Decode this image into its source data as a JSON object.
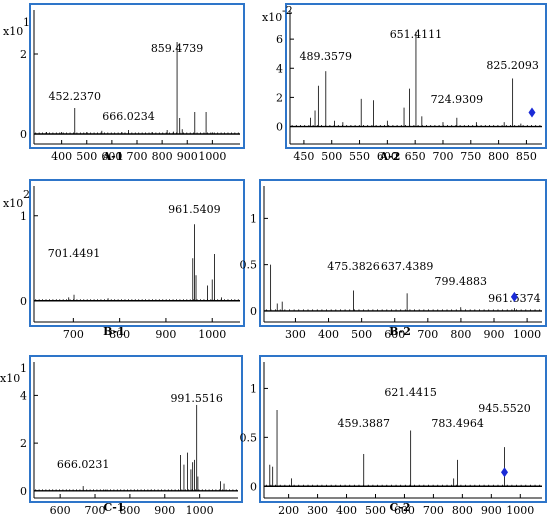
{
  "chart_data": [
    {
      "id": "A-1",
      "type": "line",
      "title": "",
      "xlabel": "",
      "ylabel": "",
      "y_scale_label": "x10",
      "y_scale_exp": "1",
      "xlim": [
        290,
        1110
      ],
      "ylim": [
        -0.25,
        3.1
      ],
      "x_ticks": [
        400,
        500,
        600,
        700,
        800,
        900,
        1000
      ],
      "y_ticks": [
        0,
        2
      ],
      "peaks": [
        [
          340,
          0.05
        ],
        [
          400,
          0.05
        ],
        [
          452.237,
          0.65
        ],
        [
          500,
          0.05
        ],
        [
          560,
          0.08
        ],
        [
          640,
          0.05
        ],
        [
          666.0234,
          0.1
        ],
        [
          760,
          0.05
        ],
        [
          820,
          0.1
        ],
        [
          845,
          0.06
        ],
        [
          859.4739,
          2.3
        ],
        [
          870,
          0.4
        ],
        [
          880,
          0.12
        ],
        [
          930,
          0.55
        ],
        [
          975,
          0.55
        ],
        [
          1000,
          0.04
        ]
      ],
      "annotations": [
        {
          "text": "452.2370",
          "x": 452.237
        },
        {
          "text": "666.0234",
          "x": 666.0234
        },
        {
          "text": "859.4739",
          "x": 859.4739
        }
      ],
      "marker_x": null
    },
    {
      "id": "A-2",
      "type": "line",
      "title": "",
      "xlabel": "",
      "ylabel": "",
      "y_scale_label": "x10",
      "y_scale_exp": "-2",
      "xlim": [
        425,
        878
      ],
      "ylim": [
        -1.2,
        8
      ],
      "x_ticks": [
        450,
        500,
        550,
        600,
        650,
        700,
        750,
        800,
        850
      ],
      "y_ticks": [
        0,
        2,
        4,
        6
      ],
      "peaks": [
        [
          462,
          0.6
        ],
        [
          470,
          1.1
        ],
        [
          476,
          2.8
        ],
        [
          489.3579,
          3.8
        ],
        [
          505,
          0.4
        ],
        [
          520,
          0.3
        ],
        [
          553,
          1.9
        ],
        [
          575,
          1.8
        ],
        [
          600,
          0.4
        ],
        [
          630,
          1.3
        ],
        [
          640,
          2.6
        ],
        [
          651.4111,
          6.5
        ],
        [
          662,
          0.7
        ],
        [
          700,
          0.3
        ],
        [
          724.9309,
          0.6
        ],
        [
          760,
          0.3
        ],
        [
          810,
          0.3
        ],
        [
          825.2093,
          3.3
        ],
        [
          840,
          0.2
        ]
      ],
      "annotations": [
        {
          "text": "489.3579",
          "x": 489.3579
        },
        {
          "text": "651.4111",
          "x": 651.4111
        },
        {
          "text": "724.9309",
          "x": 724.9309
        },
        {
          "text": "825.2093",
          "x": 825.2093
        }
      ],
      "marker_x": 860
    },
    {
      "id": "B-1",
      "type": "line",
      "title": "",
      "xlabel": "",
      "ylabel": "",
      "y_scale_label": "x10",
      "y_scale_exp": "2",
      "xlim": [
        615,
        1060
      ],
      "ylim": [
        -0.25,
        1.35
      ],
      "x_ticks": [
        700,
        800,
        900,
        1000
      ],
      "y_ticks": [
        0,
        1
      ],
      "peaks": [
        [
          690,
          0.04
        ],
        [
          701.4491,
          0.07
        ],
        [
          775,
          0.03
        ],
        [
          958,
          0.5
        ],
        [
          961.5409,
          0.9
        ],
        [
          965,
          0.3
        ],
        [
          990,
          0.18
        ],
        [
          1000,
          0.25
        ],
        [
          1005,
          0.55
        ],
        [
          1020,
          0.04
        ]
      ],
      "annotations": [
        {
          "text": "701.4491",
          "x": 701.4491
        },
        {
          "text": "961.5409",
          "x": 961.5409
        }
      ],
      "marker_x": null
    },
    {
      "id": "B-2",
      "type": "line",
      "title": "",
      "xlabel": "",
      "ylabel": "",
      "y_scale_label": "",
      "y_scale_exp": "",
      "xlim": [
        205,
        1045
      ],
      "ylim": [
        -0.12,
        1.35
      ],
      "x_ticks": [
        300,
        400,
        500,
        600,
        700,
        800,
        900,
        1000
      ],
      "y_ticks": [
        0,
        0.5,
        1
      ],
      "peaks": [
        [
          225,
          0.5
        ],
        [
          245,
          0.08
        ],
        [
          260,
          0.1
        ],
        [
          475.3826,
          0.22
        ],
        [
          637.4389,
          0.19
        ],
        [
          799.4883,
          0.04
        ],
        [
          961.5374,
          0.03
        ]
      ],
      "annotations": [
        {
          "text": "475.3826",
          "x": 475.3826
        },
        {
          "text": "637.4389",
          "x": 637.4389
        },
        {
          "text": "799.4883",
          "x": 799.4883
        },
        {
          "text": "961.5374",
          "x": 961.5374
        }
      ],
      "marker_x": 961.5374
    },
    {
      "id": "C-1",
      "type": "line",
      "title": "",
      "xlabel": "",
      "ylabel": "",
      "y_scale_label": "x10",
      "y_scale_exp": "1",
      "xlim": [
        525,
        1110
      ],
      "ylim": [
        -0.3,
        5.4
      ],
      "x_ticks": [
        600,
        700,
        800,
        900,
        1000
      ],
      "y_ticks": [
        0,
        2,
        4
      ],
      "peaks": [
        [
          666.0231,
          0.2
        ],
        [
          730,
          0.05
        ],
        [
          860,
          0.04
        ],
        [
          945,
          1.5
        ],
        [
          955,
          1.1
        ],
        [
          965,
          1.6
        ],
        [
          975,
          0.9
        ],
        [
          980,
          1.2
        ],
        [
          985,
          1.3
        ],
        [
          991.5516,
          3.6
        ],
        [
          995,
          0.6
        ],
        [
          1060,
          0.4
        ],
        [
          1070,
          0.3
        ]
      ],
      "annotations": [
        {
          "text": "666.0231",
          "x": 666.0231
        },
        {
          "text": "991.5516",
          "x": 991.5516
        }
      ],
      "marker_x": null
    },
    {
      "id": "C-2",
      "type": "line",
      "title": "",
      "xlabel": "",
      "ylabel": "",
      "y_scale_label": "",
      "y_scale_exp": "",
      "xlim": [
        115,
        1075
      ],
      "ylim": [
        -0.12,
        1.27
      ],
      "x_ticks": [
        100,
        200,
        300,
        400,
        500,
        600,
        700,
        800,
        900,
        1000
      ],
      "y_ticks": [
        0,
        0.5,
        1
      ],
      "peaks": [
        [
          135,
          0.22
        ],
        [
          145,
          0.2
        ],
        [
          160,
          0.78
        ],
        [
          210,
          0.08
        ],
        [
          459.3887,
          0.33
        ],
        [
          621.4415,
          0.57
        ],
        [
          770,
          0.08
        ],
        [
          783.4964,
          0.27
        ],
        [
          945.552,
          0.4
        ]
      ],
      "annotations": [
        {
          "text": "459.3887",
          "x": 459.3887
        },
        {
          "text": "621.4415",
          "x": 621.4415
        },
        {
          "text": "783.4964",
          "x": 783.4964
        },
        {
          "text": "945.5520",
          "x": 945.552
        }
      ],
      "marker_x": 945.552
    }
  ]
}
